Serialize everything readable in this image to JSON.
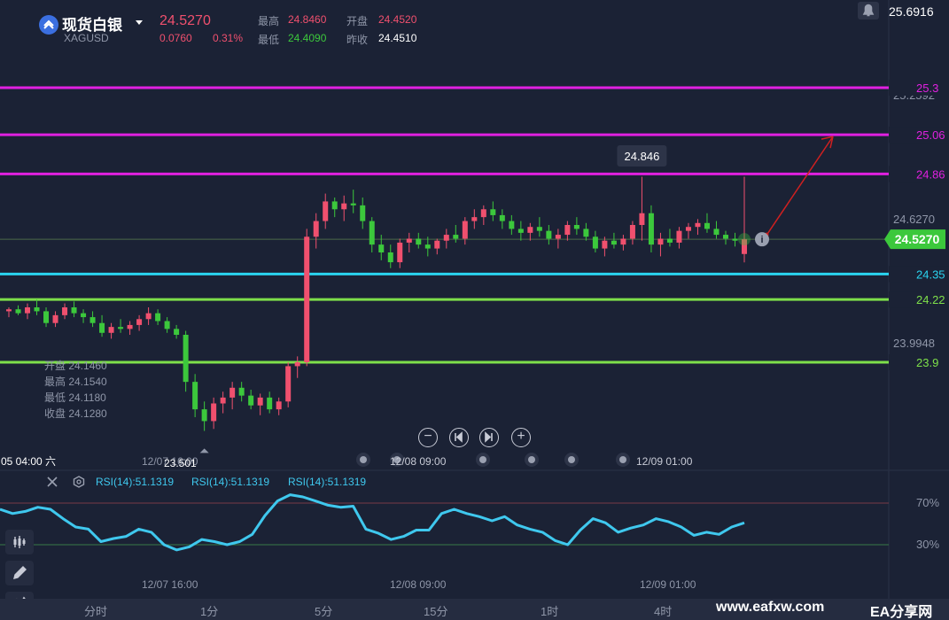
{
  "header": {
    "title": "现货白银",
    "symbol": "XAGUSD",
    "price": "24.5270",
    "change": "0.0760",
    "change_pct": "0.31%",
    "high_label": "最高",
    "high": "24.8460",
    "open_label": "开盘",
    "open": "24.4520",
    "low_label": "最低",
    "low": "24.4090",
    "prev_close_label": "昨收",
    "prev_close": "24.4510"
  },
  "ohlc_tooltip": {
    "open": "开盘 24.1460",
    "high": "最高 24.1540",
    "low": "最低 24.1180",
    "close": "收盘 24.1280"
  },
  "price_axis": {
    "top_value": "25.6916",
    "mid1": "25.2592",
    "mid2": "24.6270",
    "mid3": "23.9948",
    "current": "24.5270"
  },
  "levels": [
    {
      "label": "25.3",
      "value": 25.3,
      "color": "#e020e0"
    },
    {
      "label": "25.06",
      "value": 25.06,
      "color": "#e020e0"
    },
    {
      "label": "24.86",
      "value": 24.86,
      "color": "#e020e0"
    },
    {
      "label": "24.35",
      "value": 24.35,
      "color": "#2ad4f0"
    },
    {
      "label": "24.22",
      "value": 24.22,
      "color": "#7ee04a"
    },
    {
      "label": "23.9",
      "value": 23.9,
      "color": "#7ee04a"
    }
  ],
  "annotations": {
    "high_label": "24.846",
    "low_label": "23.501"
  },
  "time_axis": {
    "crosshair_time": "05 04:00 六",
    "t1": "12/07 16:00",
    "t2": "12/08 09:00",
    "t3": "12/09 01:00"
  },
  "rsi": {
    "label1": "RSI(14):51.1319",
    "label2": "RSI(14):51.1319",
    "label3": "RSI(14):51.1319",
    "level_high": "70%",
    "level_low": "30%"
  },
  "timeframes": [
    "分时",
    "1分",
    "5分",
    "15分",
    "1时",
    "4时"
  ],
  "watermark": {
    "site": "www.eafxw.com",
    "brand": "EA分享网"
  },
  "colors": {
    "background": "#1b2235",
    "up": "#f0506e",
    "down": "#3cc83c",
    "rsi_line": "#3fc8ee"
  },
  "chart_data": {
    "type": "candlestick",
    "symbol": "XAGUSD",
    "ylim": [
      23.45,
      25.69
    ],
    "horizontal_levels": [
      25.3,
      25.06,
      24.86,
      24.35,
      24.22,
      23.9
    ],
    "high": 24.846,
    "low": 23.501,
    "candles": [
      [
        24.16,
        24.18,
        24.13,
        24.17
      ],
      [
        24.17,
        24.19,
        24.14,
        24.15
      ],
      [
        24.15,
        24.2,
        24.12,
        24.18
      ],
      [
        24.18,
        24.22,
        24.14,
        24.16
      ],
      [
        24.16,
        24.18,
        24.08,
        24.1
      ],
      [
        24.1,
        24.16,
        24.08,
        24.14
      ],
      [
        24.14,
        24.2,
        24.12,
        24.18
      ],
      [
        24.18,
        24.21,
        24.13,
        24.15
      ],
      [
        24.15,
        24.17,
        24.1,
        24.13
      ],
      [
        24.13,
        24.16,
        24.08,
        24.1
      ],
      [
        24.1,
        24.14,
        24.03,
        24.05
      ],
      [
        24.05,
        24.1,
        24.02,
        24.08
      ],
      [
        24.08,
        24.12,
        24.05,
        24.07
      ],
      [
        24.07,
        24.11,
        24.04,
        24.09
      ],
      [
        24.09,
        24.14,
        24.06,
        24.12
      ],
      [
        24.12,
        24.18,
        24.09,
        24.15
      ],
      [
        24.15,
        24.17,
        24.09,
        24.11
      ],
      [
        24.11,
        24.13,
        24.05,
        24.07
      ],
      [
        24.07,
        24.09,
        24.02,
        24.04
      ],
      [
        24.04,
        24.06,
        23.75,
        23.8
      ],
      [
        23.8,
        23.84,
        23.62,
        23.66
      ],
      [
        23.66,
        23.7,
        23.55,
        23.6
      ],
      [
        23.6,
        23.72,
        23.56,
        23.69
      ],
      [
        23.69,
        23.75,
        23.64,
        23.72
      ],
      [
        23.72,
        23.8,
        23.66,
        23.77
      ],
      [
        23.77,
        23.8,
        23.7,
        23.73
      ],
      [
        23.73,
        23.76,
        23.66,
        23.68
      ],
      [
        23.68,
        23.74,
        23.63,
        23.72
      ],
      [
        23.72,
        23.75,
        23.64,
        23.66
      ],
      [
        23.66,
        23.72,
        23.63,
        23.7
      ],
      [
        23.7,
        23.9,
        23.67,
        23.88
      ],
      [
        23.88,
        23.93,
        23.82,
        23.9
      ],
      [
        23.9,
        24.58,
        23.88,
        24.54
      ],
      [
        24.54,
        24.66,
        24.48,
        24.62
      ],
      [
        24.62,
        24.76,
        24.58,
        24.72
      ],
      [
        24.72,
        24.74,
        24.64,
        24.68
      ],
      [
        24.68,
        24.75,
        24.62,
        24.71
      ],
      [
        24.71,
        24.78,
        24.66,
        24.7
      ],
      [
        24.7,
        24.74,
        24.58,
        24.62
      ],
      [
        24.62,
        24.64,
        24.46,
        24.5
      ],
      [
        24.5,
        24.55,
        24.42,
        24.46
      ],
      [
        24.46,
        24.5,
        24.38,
        24.41
      ],
      [
        24.41,
        24.53,
        24.38,
        24.51
      ],
      [
        24.51,
        24.56,
        24.46,
        24.53
      ],
      [
        24.53,
        24.56,
        24.48,
        24.5
      ],
      [
        24.5,
        24.54,
        24.44,
        24.48
      ],
      [
        24.48,
        24.53,
        24.45,
        24.52
      ],
      [
        24.52,
        24.58,
        24.48,
        24.55
      ],
      [
        24.55,
        24.6,
        24.51,
        24.53
      ],
      [
        24.53,
        24.64,
        24.5,
        24.62
      ],
      [
        24.62,
        24.68,
        24.58,
        24.64
      ],
      [
        24.64,
        24.7,
        24.6,
        24.68
      ],
      [
        24.68,
        24.72,
        24.62,
        24.65
      ],
      [
        24.65,
        24.68,
        24.58,
        24.62
      ],
      [
        24.62,
        24.65,
        24.55,
        24.58
      ],
      [
        24.58,
        24.62,
        24.52,
        24.56
      ],
      [
        24.56,
        24.61,
        24.52,
        24.59
      ],
      [
        24.59,
        24.64,
        24.54,
        24.57
      ],
      [
        24.57,
        24.6,
        24.5,
        24.53
      ],
      [
        24.53,
        24.58,
        24.48,
        24.55
      ],
      [
        24.55,
        24.62,
        24.52,
        24.6
      ],
      [
        24.6,
        24.64,
        24.55,
        24.58
      ],
      [
        24.58,
        24.61,
        24.52,
        24.54
      ],
      [
        24.54,
        24.57,
        24.46,
        24.48
      ],
      [
        24.48,
        24.54,
        24.44,
        24.52
      ],
      [
        24.52,
        24.56,
        24.48,
        24.5
      ],
      [
        24.5,
        24.55,
        24.47,
        24.53
      ],
      [
        24.53,
        24.62,
        24.5,
        24.6
      ],
      [
        24.6,
        24.846,
        24.52,
        24.66
      ],
      [
        24.66,
        24.7,
        24.46,
        24.5
      ],
      [
        24.5,
        24.56,
        24.44,
        24.53
      ],
      [
        24.53,
        24.58,
        24.49,
        24.51
      ],
      [
        24.51,
        24.59,
        24.48,
        24.57
      ],
      [
        24.57,
        24.61,
        24.53,
        24.59
      ],
      [
        24.59,
        24.63,
        24.55,
        24.61
      ],
      [
        24.61,
        24.66,
        24.56,
        24.58
      ],
      [
        24.58,
        24.62,
        24.53,
        24.55
      ],
      [
        24.55,
        24.57,
        24.5,
        24.53
      ],
      [
        24.53,
        24.56,
        24.49,
        24.52
      ],
      [
        24.452,
        24.846,
        24.409,
        24.527
      ]
    ],
    "rsi": {
      "name": "RSI(14)",
      "last": 51.1319,
      "levels": [
        70,
        30
      ],
      "values": [
        64,
        60,
        62,
        66,
        64,
        55,
        47,
        45,
        33,
        36,
        38,
        45,
        42,
        30,
        25,
        28,
        35,
        33,
        30,
        33,
        40,
        58,
        72,
        78,
        76,
        72,
        68,
        66,
        67,
        45,
        41,
        35,
        38,
        44,
        44,
        60,
        64,
        60,
        57,
        53,
        57,
        49,
        45,
        42,
        34,
        30,
        44,
        55,
        51,
        42,
        46,
        49,
        55,
        52,
        47,
        39,
        42,
        40,
        47,
        51
      ]
    }
  }
}
